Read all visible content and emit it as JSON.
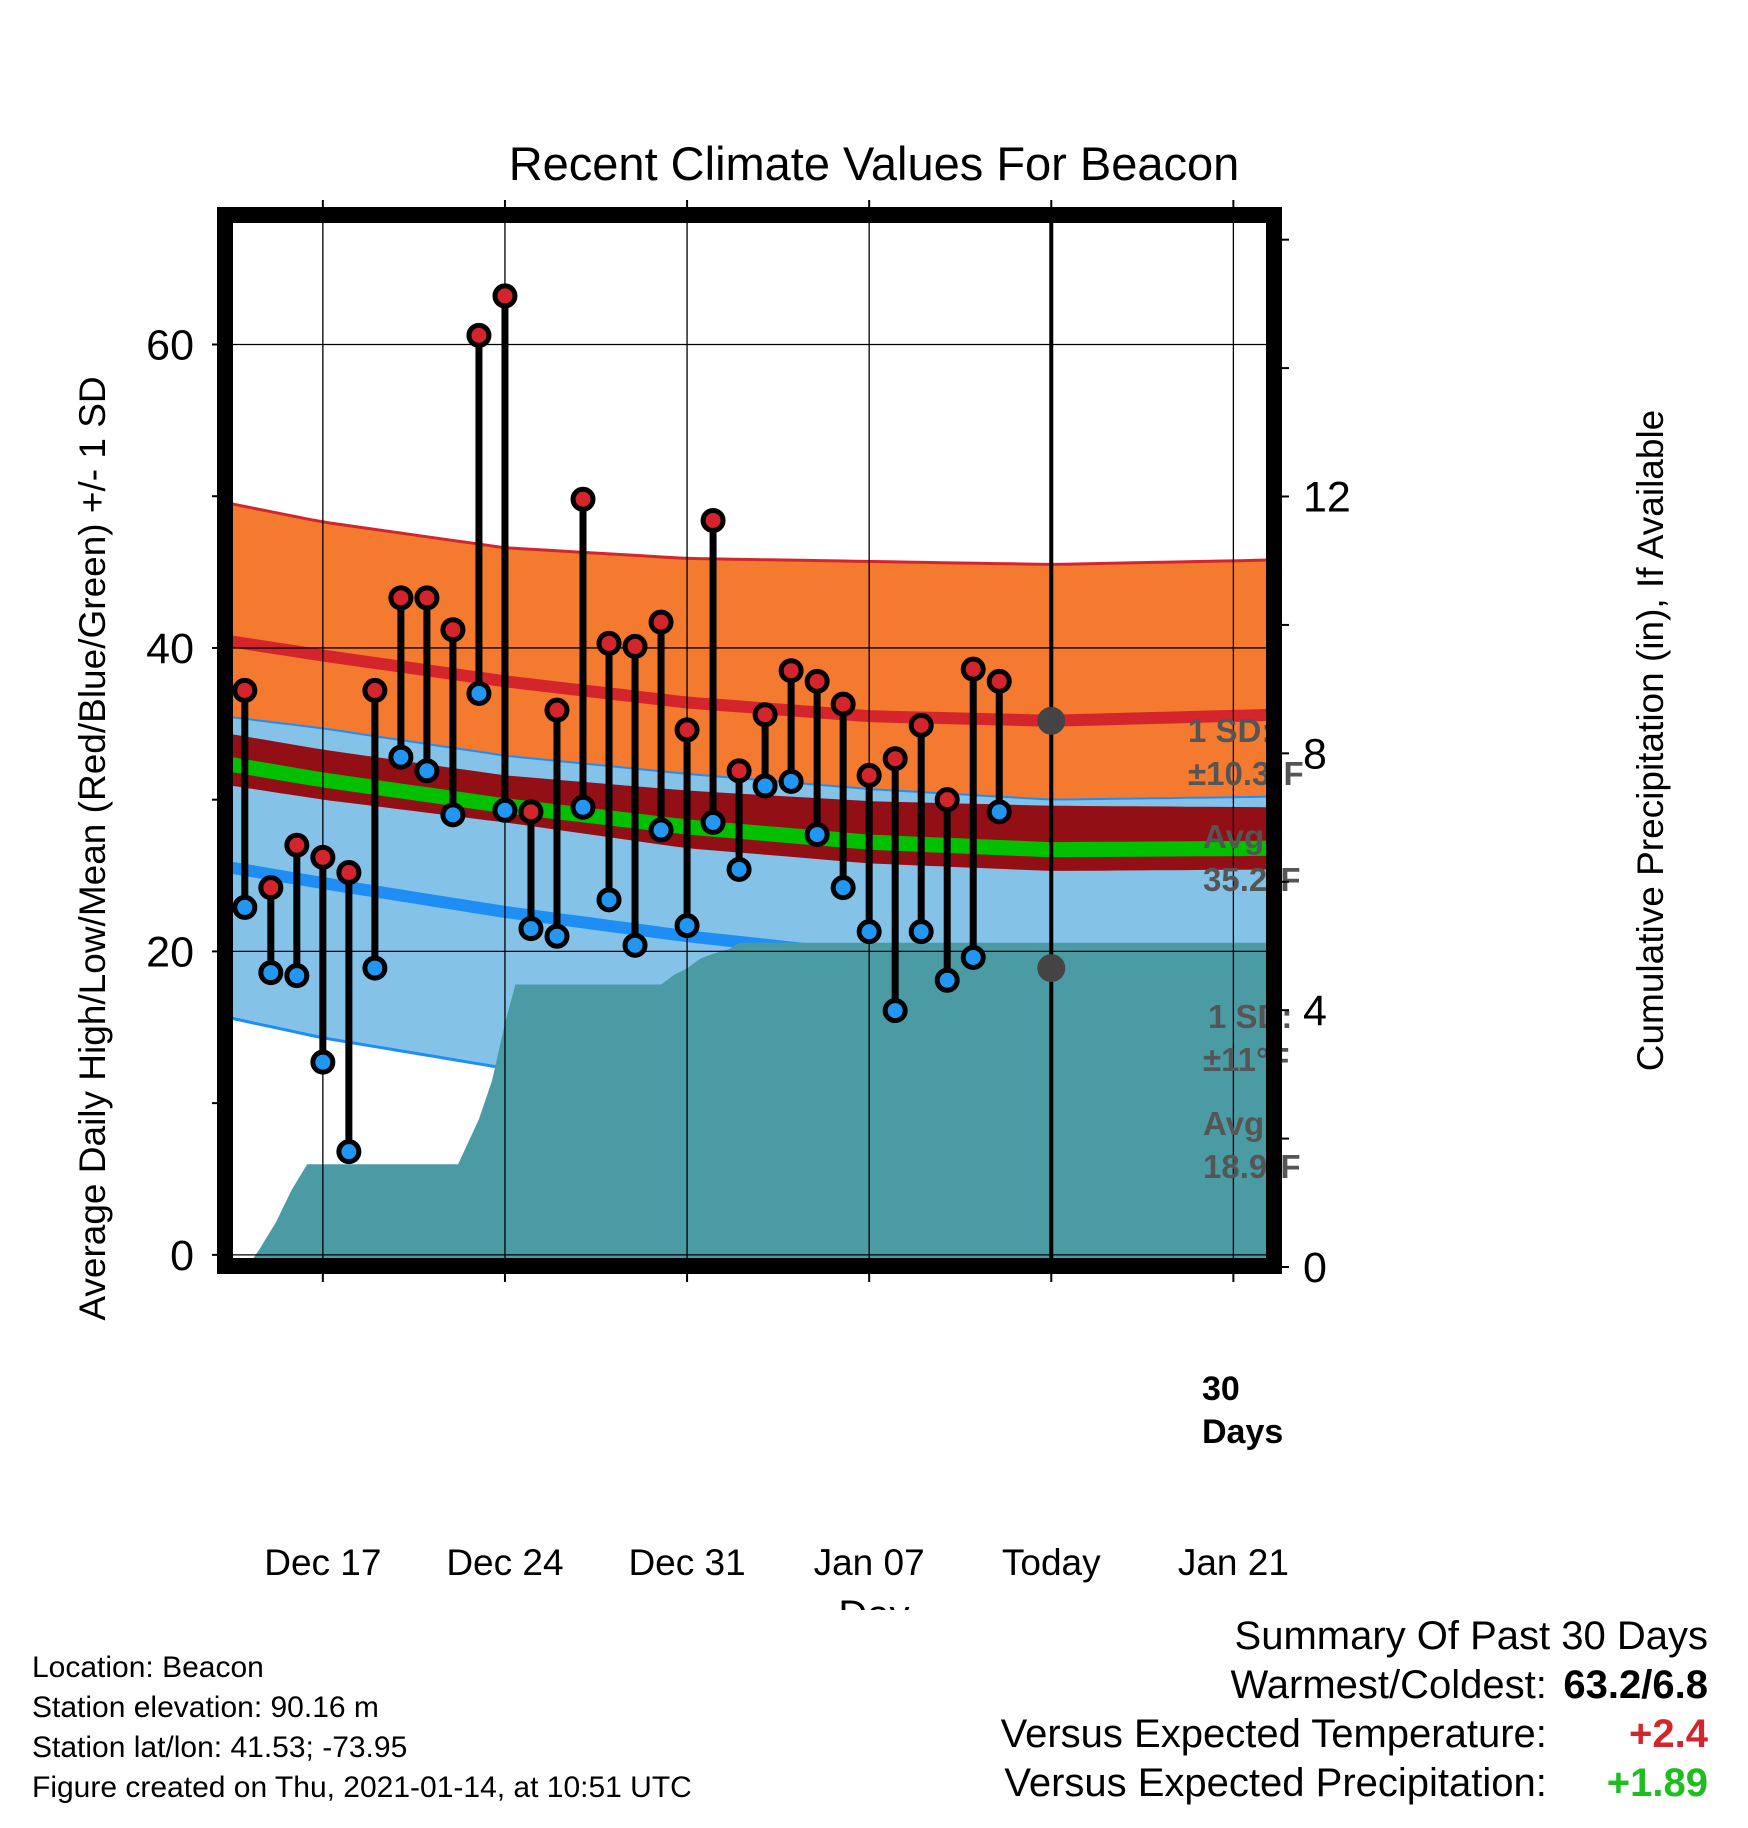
{
  "chart_data": {
    "type": "line",
    "title": "Recent Climate Values For Beacon",
    "xlabel": "Day",
    "ylabel_left": "Average Daily High/Low/Mean (Red/Blue/Green) +/- 1 SD",
    "ylabel_right": "Cumulative Precipitation (in), If Available",
    "x_ticks": [
      "Dec 17",
      "Dec 24",
      "Dec 31",
      "Jan 07",
      "Today",
      "Jan 21"
    ],
    "x_tick_days": [
      17,
      24,
      31,
      38,
      45,
      52
    ],
    "x_range": [
      13.2,
      53.6
    ],
    "y_left_ticks": [
      "0",
      "20",
      "40",
      "60"
    ],
    "y_left_tick_values": [
      0,
      20,
      40,
      60
    ],
    "y_left_range": [
      -0.8,
      68.6
    ],
    "y_right_ticks": [
      "0",
      "4",
      "8",
      "12"
    ],
    "y_right_tick_values": [
      0,
      4,
      8,
      12
    ],
    "y_right_range": [
      0,
      16.4
    ],
    "grid": true,
    "today_day": 45,
    "today_label": [
      "30",
      "Days"
    ],
    "annotations": {
      "high_sd": [
        "1 SD:",
        "±10.3°F"
      ],
      "high_avg": [
        "Avg:",
        "35.2°F"
      ],
      "low_sd": [
        "1 SD:",
        "±11°F"
      ],
      "low_avg": [
        "Avg:",
        "18.9°F"
      ]
    },
    "colors": {
      "high_band": "#f47a2f",
      "high_line": "#d3252b",
      "low_band": "#85c2e8",
      "low_line": "#1e8ef5",
      "mean_band": "#930f16",
      "mean_line": "#00c000",
      "precip": "#4b9ba5",
      "marker_high": "#d3252b",
      "marker_low": "#2196f3",
      "avg_dot": "#444444"
    },
    "normals": {
      "days": [
        13.2,
        17,
        24,
        31,
        38,
        45,
        53.6
      ],
      "high_avg": [
        40.5,
        39.5,
        37.8,
        36.4,
        35.5,
        35.2,
        35.6
      ],
      "high_upper": [
        49.6,
        48.3,
        46.6,
        45.9,
        45.7,
        45.5,
        45.8
      ],
      "low_avg": [
        25.6,
        24.5,
        22.6,
        21.0,
        19.7,
        18.9,
        18.9
      ],
      "low_lower": [
        15.7,
        14.3,
        12.3,
        10.3,
        8.7,
        7.8,
        7.6
      ],
      "mean_avg": [
        32.4,
        31.3,
        29.6,
        28.2,
        27.2,
        26.7,
        26.8
      ],
      "mean_upper": [
        34.4,
        33.3,
        31.6,
        30.6,
        29.9,
        29.6,
        29.5
      ],
      "mean_lower": [
        31.0,
        30.0,
        28.5,
        26.8,
        25.8,
        25.3,
        25.4
      ]
    },
    "observed": {
      "days": [
        14,
        15,
        16,
        17,
        18,
        19,
        20,
        21,
        22,
        23,
        24,
        25,
        26,
        27,
        28,
        29,
        30,
        31,
        32,
        33,
        34,
        35,
        36,
        37,
        38,
        39,
        40,
        41,
        42,
        43,
        44
      ],
      "high": [
        37.2,
        24.2,
        27.0,
        26.2,
        25.2,
        37.2,
        43.3,
        43.3,
        41.2,
        60.6,
        63.2,
        29.2,
        35.9,
        49.8,
        40.3,
        40.1,
        41.7,
        34.6,
        48.4,
        31.9,
        35.6,
        38.5,
        37.8,
        36.3,
        31.6,
        32.7,
        34.9,
        30.0,
        38.6,
        37.8,
        null
      ],
      "low": [
        22.9,
        18.6,
        18.4,
        12.7,
        6.8,
        18.9,
        32.8,
        31.9,
        29.0,
        37.0,
        29.3,
        21.5,
        21.0,
        29.5,
        23.4,
        20.4,
        28.0,
        21.7,
        28.5,
        25.4,
        30.9,
        31.2,
        27.7,
        24.2,
        21.3,
        16.1,
        21.3,
        18.1,
        19.6,
        29.2,
        null
      ]
    },
    "precip_cumulative": {
      "days": [
        13.2,
        14.1,
        14.6,
        15.2,
        15.8,
        16.4,
        17,
        18,
        19,
        20,
        21,
        22,
        22.2,
        23,
        23.5,
        24,
        24.4,
        24.9,
        25,
        26,
        27,
        28,
        29,
        30,
        30.5,
        31,
        31.5,
        32,
        32.6,
        33,
        33.5,
        34,
        38,
        45,
        53.6
      ],
      "values": [
        0,
        0,
        0.3,
        0.7,
        1.2,
        1.6,
        1.6,
        1.6,
        1.6,
        1.6,
        1.6,
        1.6,
        1.6,
        2.3,
        2.9,
        3.8,
        4.4,
        4.4,
        4.4,
        4.4,
        4.4,
        4.4,
        4.4,
        4.4,
        4.55,
        4.65,
        4.8,
        4.88,
        4.95,
        5.05,
        5.05,
        5.05,
        5.05,
        5.05,
        5.05
      ]
    }
  },
  "footer": {
    "location": "Location: Beacon",
    "elevation": "Station elevation: 90.16 m",
    "latlon": "Station lat/lon: 41.53; -73.95",
    "created": "Figure created on Thu, 2021-01-14, at 10:51 UTC"
  },
  "summary": {
    "title": "Summary Of Past 30 Days",
    "warmest_label": "Warmest/Coldest:",
    "warmest_value": "63.2/6.8",
    "temp_label": "Versus Expected Temperature:",
    "temp_value": "+2.4",
    "temp_color": "#d3252b",
    "precip_label": "Versus Expected Precipitation:",
    "precip_value": "+1.89",
    "precip_color": "#1fbd1f"
  }
}
